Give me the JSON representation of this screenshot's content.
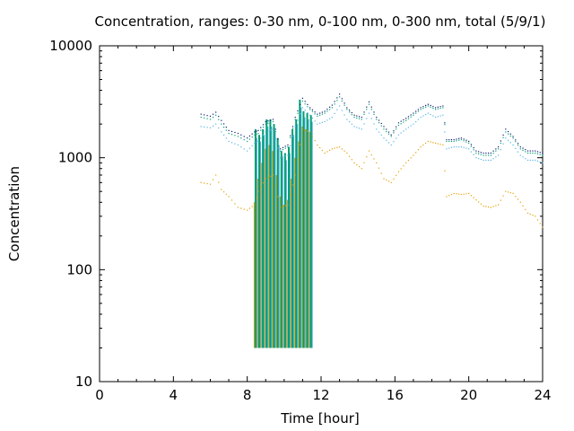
{
  "chart_data": {
    "type": "line",
    "title": "Concentration, ranges: 0-30 nm, 0-100 nm, 0-300 nm, total (5/9/1)",
    "xlabel": "Time [hour]",
    "ylabel": "Concentration",
    "xlim": [
      0,
      24
    ],
    "ylim": [
      10,
      10000
    ],
    "yscale": "log",
    "x_ticks": [
      0,
      4,
      8,
      12,
      16,
      20,
      24
    ],
    "x_tick_labels": [
      "0",
      "4",
      "8",
      "12",
      "16",
      "20",
      "24"
    ],
    "y_ticks": [
      10,
      100,
      1000,
      10000
    ],
    "y_tick_labels": [
      "10",
      "100",
      "1000",
      "10000"
    ],
    "grid": false,
    "legend": "none",
    "series": [
      {
        "color": "#e69f00",
        "style": "dots",
        "x": [
          5.5,
          6.0,
          6.3,
          6.6,
          7.0,
          7.5,
          8.0,
          8.4,
          8.6,
          9.0,
          9.4,
          9.8,
          10.2,
          10.6,
          11.0,
          11.4,
          11.8,
          12.2,
          12.6,
          13.0,
          13.4,
          13.8,
          14.2,
          14.6,
          15.0,
          15.4,
          15.8,
          16.2,
          16.6,
          17.0,
          17.4,
          17.8,
          18.2,
          18.6,
          18.8,
          19.2,
          19.6,
          20.0,
          20.4,
          20.8,
          21.2,
          21.6,
          22.0,
          22.4,
          22.8,
          23.2,
          23.6,
          24.0
        ],
        "y": [
          600,
          580,
          700,
          520,
          450,
          360,
          340,
          380,
          500,
          650,
          700,
          360,
          380,
          700,
          1800,
          1700,
          1300,
          1100,
          1200,
          1250,
          1100,
          900,
          800,
          1150,
          900,
          650,
          600,
          750,
          900,
          1050,
          1250,
          1400,
          1350,
          1300,
          450,
          480,
          470,
          480,
          420,
          370,
          360,
          380,
          500,
          480,
          400,
          320,
          300,
          240
        ]
      },
      {
        "color": "#56b4e9",
        "style": "dots",
        "x": [
          5.5,
          6.0,
          6.3,
          6.6,
          7.0,
          7.5,
          8.0,
          8.4,
          8.6,
          9.0,
          9.4,
          9.8,
          10.2,
          10.6,
          11.0,
          11.4,
          11.8,
          12.2,
          12.6,
          13.0,
          13.4,
          13.8,
          14.2,
          14.6,
          15.0,
          15.4,
          15.8,
          16.2,
          16.6,
          17.0,
          17.4,
          17.8,
          18.2,
          18.6,
          18.8,
          19.2,
          19.6,
          20.0,
          20.4,
          20.8,
          21.2,
          21.6,
          22.0,
          22.4,
          22.8,
          23.2,
          23.6,
          24.0
        ],
        "y": [
          1900,
          1850,
          2000,
          1700,
          1400,
          1300,
          1150,
          1350,
          1400,
          1700,
          1800,
          1000,
          1050,
          1900,
          2800,
          2400,
          2000,
          2100,
          2300,
          2900,
          2200,
          1900,
          1800,
          2500,
          1800,
          1500,
          1300,
          1600,
          1800,
          2000,
          2300,
          2500,
          2300,
          2400,
          1200,
          1250,
          1250,
          1200,
          1000,
          950,
          950,
          1050,
          1500,
          1300,
          1050,
          950,
          950,
          900
        ]
      },
      {
        "color": "#009e73",
        "style": "dots",
        "x": [
          5.5,
          6.0,
          6.3,
          6.6,
          7.0,
          7.5,
          8.0,
          8.4,
          8.6,
          9.0,
          9.4,
          9.8,
          10.2,
          10.6,
          11.0,
          11.4,
          11.8,
          12.2,
          12.6,
          13.0,
          13.4,
          13.8,
          14.2,
          14.6,
          15.0,
          15.4,
          15.8,
          16.2,
          16.6,
          17.0,
          17.4,
          17.8,
          18.2,
          18.6,
          18.8,
          19.2,
          19.6,
          20.0,
          20.4,
          20.8,
          21.2,
          21.6,
          22.0,
          22.4,
          22.8,
          23.2,
          23.6,
          24.0
        ],
        "y": [
          2300,
          2200,
          2400,
          2000,
          1650,
          1550,
          1400,
          1600,
          1650,
          2000,
          2100,
          1150,
          1250,
          2200,
          3200,
          2700,
          2350,
          2500,
          2800,
          3500,
          2700,
          2300,
          2200,
          3000,
          2200,
          1800,
          1550,
          1950,
          2150,
          2400,
          2700,
          2900,
          2700,
          2800,
          1400,
          1400,
          1450,
          1350,
          1100,
          1050,
          1050,
          1200,
          1700,
          1500,
          1200,
          1100,
          1100,
          1050
        ]
      },
      {
        "color": "#0a1a6e",
        "style": "dots",
        "x": [
          5.5,
          6.0,
          6.3,
          6.6,
          7.0,
          7.5,
          8.0,
          8.4,
          8.6,
          9.0,
          9.4,
          9.8,
          10.2,
          10.6,
          11.0,
          11.4,
          11.8,
          12.2,
          12.6,
          13.0,
          13.4,
          13.8,
          14.2,
          14.6,
          15.0,
          15.4,
          15.8,
          16.2,
          16.6,
          17.0,
          17.4,
          17.8,
          18.2,
          18.6,
          18.8,
          19.2,
          19.6,
          20.0,
          20.4,
          20.8,
          21.2,
          21.6,
          22.0,
          22.4,
          22.8,
          23.2,
          23.6,
          24.0
        ],
        "y": [
          2450,
          2350,
          2550,
          2150,
          1750,
          1650,
          1500,
          1700,
          1750,
          2100,
          2200,
          1200,
          1300,
          2300,
          3400,
          2800,
          2450,
          2600,
          2950,
          3700,
          2800,
          2400,
          2300,
          3150,
          2300,
          1900,
          1600,
          2050,
          2250,
          2500,
          2800,
          3000,
          2800,
          2900,
          1450,
          1450,
          1500,
          1400,
          1150,
          1100,
          1100,
          1250,
          1800,
          1550,
          1250,
          1150,
          1150,
          1100
        ]
      }
    ],
    "impulse_series": [
      {
        "color": "#e69f00",
        "x": [
          8.4,
          8.6,
          8.8,
          9.0,
          9.2,
          9.4,
          9.6,
          9.8,
          10.0,
          10.2,
          10.4,
          10.6,
          10.8,
          11.0,
          11.2,
          11.4
        ],
        "y_from": 20,
        "y": [
          400,
          650,
          900,
          1200,
          1300,
          1150,
          700,
          450,
          380,
          420,
          650,
          1000,
          1400,
          1900,
          1800,
          1700
        ]
      },
      {
        "color": "#56b4e9",
        "x": [
          8.5,
          8.7,
          8.9,
          9.1,
          9.3,
          9.5,
          9.7,
          9.9,
          10.1,
          10.3,
          10.5,
          10.7,
          10.9,
          11.1,
          11.3,
          11.5
        ],
        "y_from": 20,
        "y": [
          1500,
          1400,
          1600,
          1900,
          1900,
          1700,
          1300,
          1000,
          950,
          1100,
          1600,
          2000,
          2800,
          2300,
          2200,
          2100
        ]
      },
      {
        "color": "#009e73",
        "x": [
          8.45,
          8.65,
          8.85,
          9.05,
          9.25,
          9.45,
          9.65,
          9.85,
          10.05,
          10.25,
          10.45,
          10.65,
          10.85,
          11.05,
          11.25,
          11.45
        ],
        "y_from": 20,
        "y": [
          1800,
          1600,
          1800,
          2200,
          2200,
          2000,
          1500,
          1150,
          1100,
          1250,
          1800,
          2200,
          3300,
          2600,
          2500,
          2400
        ]
      }
    ]
  }
}
